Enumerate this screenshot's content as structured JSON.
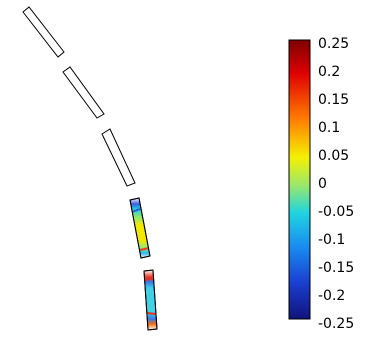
{
  "colorbar": {
    "ticks": [
      "0.25",
      "0.2",
      "0.15",
      "0.1",
      "0.05",
      "0",
      "-0.05",
      "-0.1",
      "-0.15",
      "-0.2",
      "-0.25"
    ],
    "min": -0.25,
    "max": 0.25,
    "colormap": [
      "#800000",
      "#ff0000",
      "#ff8000",
      "#ffff00",
      "#80ff80",
      "#00ffff",
      "#0080ff",
      "#0000ff",
      "#000080"
    ]
  },
  "segments": [
    {
      "id": 1,
      "field": "none"
    },
    {
      "id": 2,
      "field": "none"
    },
    {
      "id": 3,
      "field": "none"
    },
    {
      "id": 4,
      "field": "yellow-center"
    },
    {
      "id": 5,
      "field": "cyan-center"
    }
  ]
}
